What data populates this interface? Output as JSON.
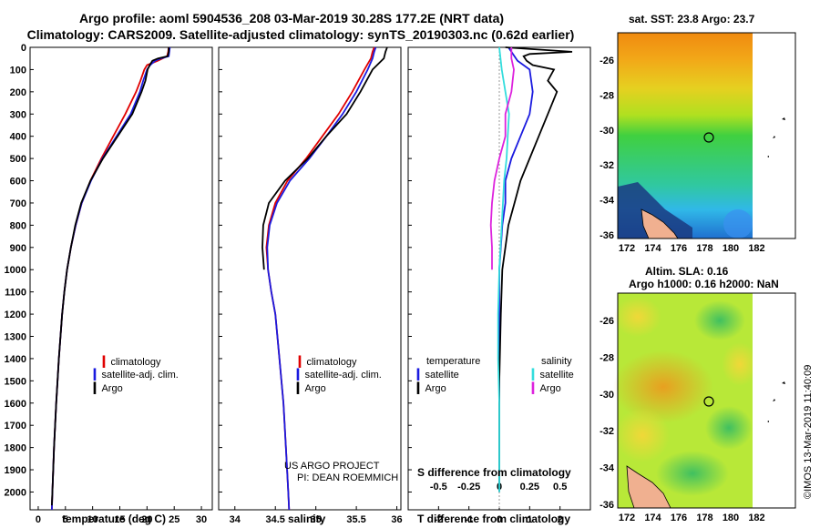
{
  "header": {
    "title_line1": "Argo profile: aoml 5904536_208 03-Mar-2019 30.28S 177.2E (NRT data)",
    "title_line2": "Climatology: CARS2009. Satellite-adjusted climatology: synTS_20190303.nc (0.62d earlier)"
  },
  "colors": {
    "climatology": "#e00000",
    "satellite": "#1a1adf",
    "argo": "#000000",
    "sal_sat": "#33dddd",
    "sal_argo": "#dd22dd"
  },
  "chart_data": [
    {
      "type": "line",
      "id": "temperature",
      "xlabel": "temperature (deg C)",
      "xlim": [
        -1.5,
        32
      ],
      "ylim": [
        2080,
        0
      ],
      "xticks": [
        0,
        5,
        10,
        15,
        20,
        25,
        30
      ],
      "yticks": [
        0,
        100,
        200,
        300,
        400,
        500,
        600,
        700,
        800,
        900,
        1000,
        1100,
        1200,
        1300,
        1400,
        1500,
        1600,
        1700,
        1800,
        1900,
        2000
      ],
      "legend": [
        "climatology",
        "satellite-adj. clim.",
        "Argo"
      ],
      "series": [
        {
          "name": "climatology",
          "depth": [
            0,
            20,
            40,
            60,
            80,
            100,
            150,
            200,
            300,
            400,
            500,
            600,
            700,
            800,
            900,
            1000,
            1100,
            1200,
            1400,
            1600,
            1800,
            2000,
            2080
          ],
          "values": [
            24.0,
            23.9,
            23.7,
            22.0,
            20.0,
            19.5,
            18.8,
            18.0,
            16.0,
            13.8,
            11.6,
            9.6,
            8.0,
            6.9,
            6.0,
            5.3,
            4.8,
            4.4,
            3.8,
            3.3,
            2.9,
            2.6,
            2.5
          ]
        },
        {
          "name": "satellite-adj. clim.",
          "depth": [
            0,
            20,
            40,
            50,
            60,
            80,
            100,
            150,
            200,
            300,
            400,
            500,
            600,
            700,
            800,
            900,
            1000,
            1100,
            1200,
            1400,
            1600,
            1800,
            2000,
            2080
          ],
          "values": [
            24.2,
            24.1,
            24.0,
            22.5,
            21.5,
            20.6,
            20.0,
            19.3,
            18.7,
            17.0,
            14.4,
            11.8,
            9.7,
            8.0,
            6.9,
            6.0,
            5.3,
            4.8,
            4.4,
            3.8,
            3.3,
            2.9,
            2.6,
            2.5
          ]
        },
        {
          "name": "Argo",
          "depth": [
            0,
            20,
            40,
            50,
            60,
            80,
            100,
            150,
            200,
            300,
            400,
            500,
            600,
            700,
            800,
            900,
            1000,
            1100,
            1200,
            1400,
            1600,
            1800,
            2000,
            2060
          ],
          "values": [
            24.0,
            24.0,
            23.8,
            22.0,
            21.0,
            20.5,
            20.1,
            19.7,
            19.0,
            17.3,
            14.6,
            11.9,
            9.6,
            7.9,
            6.8,
            6.0,
            5.3,
            4.8,
            4.4,
            3.8,
            3.3,
            2.9,
            2.6,
            2.5
          ]
        }
      ]
    },
    {
      "type": "line",
      "id": "salinity",
      "xlabel": "salinity",
      "xlim": [
        33.8,
        36.05
      ],
      "ylim": [
        2080,
        0
      ],
      "xticks": [
        34,
        34.5,
        35,
        35.5,
        36
      ],
      "legend": [
        "climatology",
        "satellite-adj. clim.",
        "Argo"
      ],
      "series": [
        {
          "name": "climatology",
          "depth": [
            0,
            20,
            50,
            100,
            200,
            300,
            400,
            500,
            600,
            700,
            800,
            900,
            1000,
            1100,
            1200,
            1400,
            1600,
            1800,
            2000,
            2080
          ],
          "values": [
            35.72,
            35.7,
            35.68,
            35.6,
            35.45,
            35.28,
            35.08,
            34.88,
            34.65,
            34.5,
            34.42,
            34.39,
            34.41,
            34.45,
            34.5,
            34.55,
            34.6,
            34.63,
            34.66,
            34.67
          ]
        },
        {
          "name": "satellite-adj. clim.",
          "depth": [
            0,
            20,
            50,
            100,
            200,
            300,
            400,
            500,
            600,
            700,
            800,
            900,
            1000,
            1100,
            1200,
            1400,
            1600,
            1800,
            2000,
            2080
          ],
          "values": [
            35.74,
            35.72,
            35.7,
            35.64,
            35.5,
            35.33,
            35.13,
            34.92,
            34.68,
            34.52,
            34.43,
            34.4,
            34.41,
            34.45,
            34.5,
            34.55,
            34.6,
            34.63,
            34.66,
            34.67
          ]
        },
        {
          "name": "Argo",
          "depth": [
            0,
            20,
            50,
            100,
            200,
            300,
            400,
            500,
            600,
            700,
            800,
            900,
            1000
          ],
          "values": [
            35.88,
            35.86,
            35.84,
            35.7,
            35.55,
            35.38,
            35.13,
            34.9,
            34.62,
            34.42,
            34.35,
            34.34,
            34.36
          ]
        }
      ]
    },
    {
      "type": "line",
      "id": "difference",
      "xlabel": "T difference from climatology",
      "xlabel2": "S difference from climatology",
      "xlim": [
        -3,
        3
      ],
      "ylim": [
        2080,
        0
      ],
      "xticks": [
        -2,
        -1,
        0,
        1,
        2
      ],
      "xticks_top_labels": [
        "-0.5",
        "-0.25",
        "0",
        "0.25",
        "0.5"
      ],
      "legend_temperature_heading": "temperature",
      "legend_salinity_heading": "salinity",
      "legend": [
        "satellite",
        "Argo",
        "satellite",
        "Argo"
      ],
      "series": [
        {
          "name": "T satellite",
          "depth": [
            0,
            20,
            60,
            100,
            200,
            300,
            400,
            500,
            600,
            700,
            800,
            900,
            1000,
            1200,
            1500,
            2000
          ],
          "values": [
            0.3,
            0.4,
            0.6,
            1.0,
            1.1,
            1.0,
            0.7,
            0.4,
            0.2,
            0.2,
            0.1,
            0.05,
            0.0,
            0.0,
            0.0,
            0.0
          ]
        },
        {
          "name": "T argo",
          "depth": [
            0,
            20,
            30,
            40,
            60,
            80,
            100,
            150,
            200,
            300,
            400,
            500,
            600,
            700,
            800,
            900,
            1000,
            1200,
            1500,
            2000
          ],
          "values": [
            0.2,
            2.4,
            1.0,
            0.8,
            0.9,
            1.1,
            1.8,
            1.6,
            1.9,
            1.6,
            1.3,
            1.0,
            0.7,
            0.5,
            0.3,
            0.2,
            0.1,
            0.05,
            0.0,
            0.0
          ]
        },
        {
          "name": "S satellite",
          "depth": [
            0,
            100,
            200,
            300,
            400,
            500,
            600,
            700,
            800,
            1000,
            1200,
            1400,
            1600,
            1800,
            2000
          ],
          "values": [
            0.0,
            0.02,
            0.05,
            0.08,
            0.07,
            0.06,
            0.04,
            0.03,
            0.02,
            0.0,
            -0.01,
            -0.01,
            0.0,
            0.0,
            0.0
          ]
        },
        {
          "name": "S argo",
          "depth": [
            0,
            50,
            100,
            200,
            300,
            400,
            500,
            600,
            700,
            800,
            900,
            1000
          ],
          "values": [
            0.1,
            0.1,
            0.12,
            0.1,
            0.05,
            0.05,
            0.0,
            -0.04,
            -0.06,
            -0.07,
            -0.06,
            -0.06
          ]
        }
      ]
    }
  ],
  "maps": {
    "sst_title": "sat. SST: 23.8 Argo: 23.7",
    "sla_title1": "Altim. SLA: 0.16",
    "sla_title2": "Argo h1000: 0.16 h2000: NaN",
    "lon_ticks": [
      "172",
      "174",
      "176",
      "178",
      "180",
      "182"
    ],
    "sst_lat_ticks": [
      "-26",
      "-28",
      "-30",
      "-32",
      "-34",
      "-36"
    ],
    "sla_lat_ticks": [
      "-26",
      "-28",
      "-30",
      "-32",
      "-34",
      "-36"
    ]
  },
  "credits": {
    "line1": "US ARGO PROJECT",
    "line2": "PI: DEAN ROEMMICH"
  },
  "footer": {
    "copyright": "©IMOS 13-Mar-2019 11:40:09"
  }
}
